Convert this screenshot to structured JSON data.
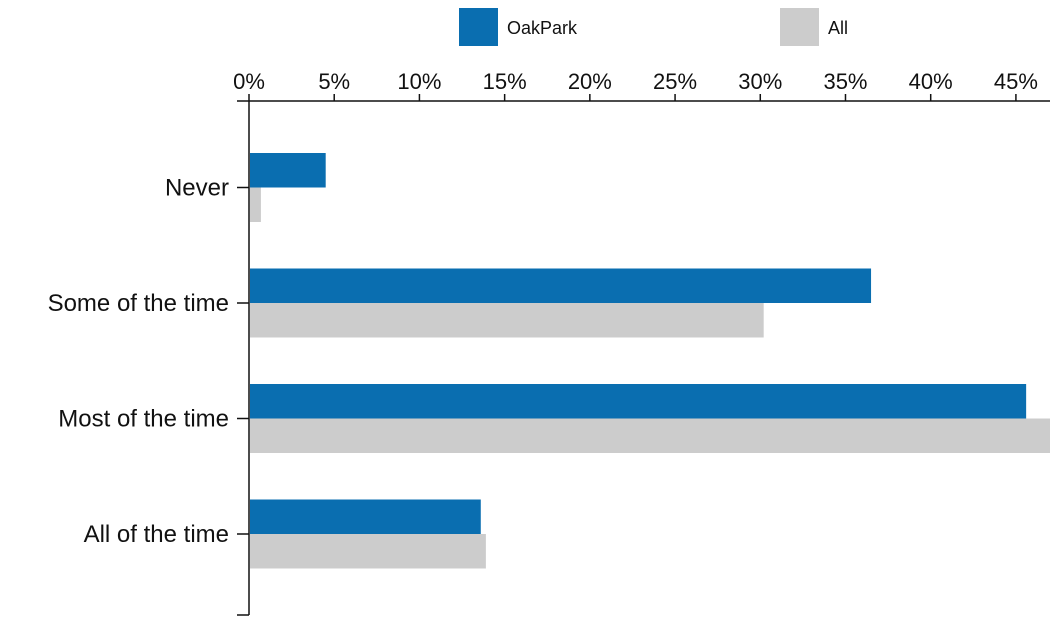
{
  "chart_data": {
    "type": "bar",
    "orientation": "horizontal",
    "categories": [
      "Never",
      "Some of the time",
      "Most of the time",
      "All of the time"
    ],
    "series": [
      {
        "name": "OakPark",
        "color": "#0a6eb0",
        "values": [
          4.5,
          36.5,
          45.6,
          13.6
        ]
      },
      {
        "name": "All",
        "color": "#cccccc",
        "values": [
          0.7,
          30.2,
          47.0,
          13.9
        ]
      }
    ],
    "xlim": [
      0,
      47
    ],
    "x_ticks": [
      0,
      5,
      10,
      15,
      20,
      25,
      30,
      35,
      40,
      45
    ],
    "tick_suffix": "%",
    "axis_position": "top",
    "legend_position": "top",
    "grid": false
  }
}
